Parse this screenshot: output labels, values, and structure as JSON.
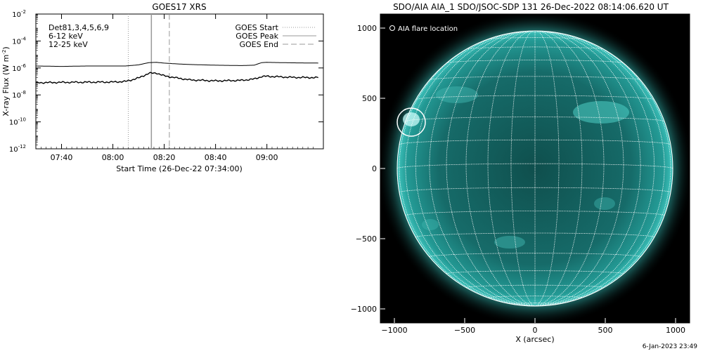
{
  "goes_panel": {
    "title": "GOES17 XRS",
    "xlabel": "Start Time (26-Dec-22 07:34:00)",
    "ylabel_main": "X-ray Flux (W m",
    "ylabel_exp": "-2",
    "ylabel_close": ")",
    "legend_channels": [
      {
        "text": "Det81,3,4,5,6,9",
        "color": "#000000"
      },
      {
        "text": "6-12 keV",
        "color": "#e100e1"
      },
      {
        "text": "12-25 keV",
        "color": "#00c800"
      }
    ],
    "legend_markers": [
      {
        "text": "GOES Start",
        "style": "dotted",
        "color": "#999999"
      },
      {
        "text": "GOES Peak",
        "style": "solid",
        "color": "#999999"
      },
      {
        "text": "GOES End",
        "style": "dashed",
        "color": "#999999"
      }
    ]
  },
  "aia_panel": {
    "title": "SDO/AIA AIA_1 SDO/JSOC-SDP 131 26-Dec-2022 08:14:06.620 UT",
    "legend": "AIA flare location",
    "xlabel": "X (arcsec)",
    "colors": {
      "disk": "#1f8a86",
      "background": "#000000",
      "grid": "#ffffff"
    }
  },
  "footer_timestamp": "6-Jan-2023 23:49",
  "chart_data": [
    {
      "type": "line",
      "title": "GOES17 XRS",
      "xlabel": "Start Time (26-Dec-22 07:34:00)",
      "ylabel": "X-ray Flux (W m-2)",
      "y_scale": "log",
      "ylim": [
        1e-12,
        0.01
      ],
      "y_tick_base": "10",
      "y_tick_exponents": [
        "-12",
        "-10",
        "-8",
        "-6",
        "-4",
        "-2"
      ],
      "xlim": [
        "07:30",
        "09:22"
      ],
      "x_tick_labels": [
        "07:40",
        "08:00",
        "08:20",
        "08:40",
        "09:00"
      ],
      "x_tick_minutes": [
        460,
        480,
        500,
        520,
        540
      ],
      "markers": {
        "start_min": 486,
        "peak_min": 495,
        "end_min": 502
      },
      "series": [
        {
          "name": "",
          "color": "#000000",
          "x_minutes": [
            450,
            460,
            470,
            480,
            485,
            490,
            494,
            497,
            500,
            505,
            510,
            520,
            530,
            535,
            538,
            540,
            550,
            560
          ],
          "values": [
            1.4e-06,
            1.3e-06,
            1.4e-06,
            1.4e-06,
            1.4e-06,
            1.7e-06,
            2.5e-06,
            2.6e-06,
            2.3e-06,
            2e-06,
            1.8e-06,
            1.6e-06,
            1.5e-06,
            1.6e-06,
            2.5e-06,
            2.6e-06,
            2.4e-06,
            2.3e-06
          ]
        },
        {
          "name": "",
          "color": "#000000",
          "x_minutes": [
            450,
            460,
            470,
            480,
            485,
            490,
            494,
            497,
            500,
            505,
            510,
            520,
            530,
            535,
            538,
            540,
            550,
            560
          ],
          "values": [
            8e-08,
            8.5e-08,
            8.8e-08,
            9e-08,
            1e-07,
            1.8e-07,
            4e-07,
            4.2e-07,
            2.6e-07,
            1.8e-07,
            1.3e-07,
            1.1e-07,
            1.2e-07,
            1.5e-07,
            2.3e-07,
            2.4e-07,
            2e-07,
            1.9e-07
          ]
        }
      ]
    },
    {
      "type": "heatmap",
      "title": "SDO/AIA AIA_1 SDO/JSOC-SDP 131 26-Dec-2022 08:14:06.620 UT",
      "xlabel": "X (arcsec)",
      "xlim": [
        -1100,
        1100
      ],
      "ylim": [
        -1100,
        1100
      ],
      "x_ticks": [
        -1000,
        -500,
        0,
        500,
        1000
      ],
      "x_tick_labels": [
        "−1000",
        "−500",
        "0",
        "500",
        "1000"
      ],
      "y_ticks": [
        -1000,
        -500,
        0,
        500,
        1000
      ],
      "y_tick_labels": [
        "−1000",
        "−500",
        "0",
        "500",
        "1000"
      ],
      "solar_radius_arcsec": 980,
      "flare_location": [
        -880,
        330
      ],
      "flare_circle_radius_arcsec": 100,
      "grid_lines": true
    }
  ]
}
